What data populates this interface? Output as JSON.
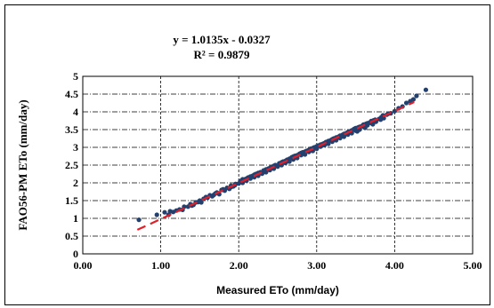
{
  "chart_data": {
    "type": "scatter",
    "equation": "y = 1.0135x - 0.0327",
    "r_squared": "R² = 0.9879",
    "xlabel": "Measured ETo (mm/day)",
    "ylabel": "FAO56-PM ETo (mm/day)",
    "xlim": [
      0,
      5
    ],
    "ylim": [
      0,
      5
    ],
    "x_ticks": [
      "0.00",
      "1.00",
      "2.00",
      "3.00",
      "4.00",
      "5.00"
    ],
    "y_ticks": [
      "0",
      "0.5",
      "1",
      "1.5",
      "2",
      "2.5",
      "3",
      "3.5",
      "4",
      "4.5",
      "5"
    ],
    "grid": true,
    "trendline": {
      "slope": 1.0135,
      "intercept": -0.0327,
      "x_range": [
        0.7,
        4.25
      ],
      "color": "#e0202a"
    },
    "point_color": "#23406e",
    "points": [
      [
        0.72,
        0.96
      ],
      [
        0.95,
        1.1
      ],
      [
        1.05,
        1.17
      ],
      [
        1.1,
        1.1
      ],
      [
        1.12,
        1.2
      ],
      [
        1.16,
        1.18
      ],
      [
        1.2,
        1.22
      ],
      [
        1.24,
        1.25
      ],
      [
        1.28,
        1.24
      ],
      [
        1.3,
        1.33
      ],
      [
        1.35,
        1.33
      ],
      [
        1.38,
        1.4
      ],
      [
        1.42,
        1.38
      ],
      [
        1.45,
        1.45
      ],
      [
        1.5,
        1.5
      ],
      [
        1.52,
        1.45
      ],
      [
        1.55,
        1.55
      ],
      [
        1.6,
        1.58
      ],
      [
        1.63,
        1.65
      ],
      [
        1.66,
        1.62
      ],
      [
        1.7,
        1.7
      ],
      [
        1.72,
        1.73
      ],
      [
        1.75,
        1.68
      ],
      [
        1.78,
        1.8
      ],
      [
        1.82,
        1.78
      ],
      [
        1.85,
        1.86
      ],
      [
        1.88,
        1.83
      ],
      [
        1.9,
        1.92
      ],
      [
        1.93,
        1.9
      ],
      [
        1.96,
        1.97
      ],
      [
        2.0,
        1.98
      ],
      [
        2.02,
        2.05
      ],
      [
        2.05,
        2.0
      ],
      [
        2.08,
        2.1
      ],
      [
        2.1,
        2.06
      ],
      [
        2.12,
        2.15
      ],
      [
        2.15,
        2.12
      ],
      [
        2.18,
        2.2
      ],
      [
        2.2,
        2.16
      ],
      [
        2.22,
        2.25
      ],
      [
        2.25,
        2.2
      ],
      [
        2.28,
        2.3
      ],
      [
        2.3,
        2.26
      ],
      [
        2.32,
        2.35
      ],
      [
        2.35,
        2.3
      ],
      [
        2.38,
        2.4
      ],
      [
        2.4,
        2.36
      ],
      [
        2.42,
        2.45
      ],
      [
        2.45,
        2.4
      ],
      [
        2.47,
        2.5
      ],
      [
        2.5,
        2.46
      ],
      [
        2.52,
        2.55
      ],
      [
        2.55,
        2.5
      ],
      [
        2.57,
        2.6
      ],
      [
        2.6,
        2.56
      ],
      [
        2.62,
        2.65
      ],
      [
        2.65,
        2.6
      ],
      [
        2.68,
        2.72
      ],
      [
        2.7,
        2.66
      ],
      [
        2.72,
        2.76
      ],
      [
        2.75,
        2.7
      ],
      [
        2.78,
        2.82
      ],
      [
        2.8,
        2.78
      ],
      [
        2.82,
        2.86
      ],
      [
        2.85,
        2.8
      ],
      [
        2.87,
        2.9
      ],
      [
        2.9,
        2.87
      ],
      [
        2.92,
        2.96
      ],
      [
        2.95,
        2.9
      ],
      [
        2.97,
        3.0
      ],
      [
        3.0,
        2.96
      ],
      [
        3.02,
        3.05
      ],
      [
        3.05,
        3.02
      ],
      [
        3.08,
        3.1
      ],
      [
        3.1,
        3.06
      ],
      [
        3.12,
        3.15
      ],
      [
        3.15,
        3.1
      ],
      [
        3.18,
        3.2
      ],
      [
        3.2,
        3.16
      ],
      [
        3.22,
        3.25
      ],
      [
        3.25,
        3.2
      ],
      [
        3.28,
        3.3
      ],
      [
        3.3,
        3.26
      ],
      [
        3.33,
        3.35
      ],
      [
        3.35,
        3.3
      ],
      [
        3.38,
        3.4
      ],
      [
        3.4,
        3.36
      ],
      [
        3.43,
        3.45
      ],
      [
        3.45,
        3.4
      ],
      [
        3.48,
        3.52
      ],
      [
        3.5,
        3.47
      ],
      [
        3.53,
        3.56
      ],
      [
        3.55,
        3.5
      ],
      [
        3.58,
        3.6
      ],
      [
        3.6,
        3.58
      ],
      [
        3.63,
        3.66
      ],
      [
        3.65,
        3.62
      ],
      [
        3.68,
        3.7
      ],
      [
        3.7,
        3.68
      ],
      [
        3.73,
        3.76
      ],
      [
        3.76,
        3.72
      ],
      [
        3.8,
        3.8
      ],
      [
        3.83,
        3.85
      ],
      [
        3.86,
        3.82
      ],
      [
        3.9,
        3.92
      ],
      [
        3.95,
        3.96
      ],
      [
        4.0,
        4.02
      ],
      [
        4.05,
        4.1
      ],
      [
        4.1,
        4.15
      ],
      [
        4.15,
        4.25
      ],
      [
        4.2,
        4.3
      ],
      [
        4.24,
        4.35
      ],
      [
        4.28,
        4.45
      ],
      [
        4.4,
        4.62
      ],
      [
        2.05,
        2.1
      ],
      [
        2.15,
        2.18
      ],
      [
        2.25,
        2.28
      ],
      [
        2.35,
        2.38
      ],
      [
        2.45,
        2.48
      ],
      [
        2.6,
        2.62
      ],
      [
        2.7,
        2.74
      ],
      [
        2.8,
        2.84
      ],
      [
        2.9,
        2.93
      ],
      [
        3.0,
        3.03
      ],
      [
        3.1,
        3.12
      ],
      [
        3.2,
        3.23
      ],
      [
        3.3,
        3.33
      ],
      [
        3.4,
        3.43
      ],
      [
        3.5,
        3.54
      ],
      [
        3.6,
        3.64
      ],
      [
        3.7,
        3.74
      ],
      [
        1.95,
        1.93
      ],
      [
        2.1,
        2.12
      ],
      [
        2.2,
        2.23
      ],
      [
        2.4,
        2.42
      ],
      [
        2.55,
        2.58
      ],
      [
        2.65,
        2.68
      ],
      [
        2.75,
        2.78
      ],
      [
        2.85,
        2.88
      ],
      [
        2.95,
        2.98
      ],
      [
        3.05,
        3.08
      ],
      [
        3.15,
        3.18
      ],
      [
        3.25,
        3.28
      ],
      [
        3.35,
        3.38
      ],
      [
        3.45,
        3.48
      ],
      [
        3.55,
        3.58
      ],
      [
        3.65,
        3.68
      ],
      [
        3.75,
        3.78
      ],
      [
        3.85,
        3.9
      ],
      [
        3.92,
        3.95
      ],
      [
        1.4,
        1.36
      ],
      [
        1.48,
        1.46
      ],
      [
        1.58,
        1.6
      ],
      [
        1.68,
        1.66
      ],
      [
        1.8,
        1.82
      ],
      [
        1.9,
        1.88
      ],
      [
        3.82,
        3.78
      ],
      [
        3.72,
        3.65
      ],
      [
        3.62,
        3.55
      ],
      [
        3.52,
        3.45
      ]
    ]
  }
}
